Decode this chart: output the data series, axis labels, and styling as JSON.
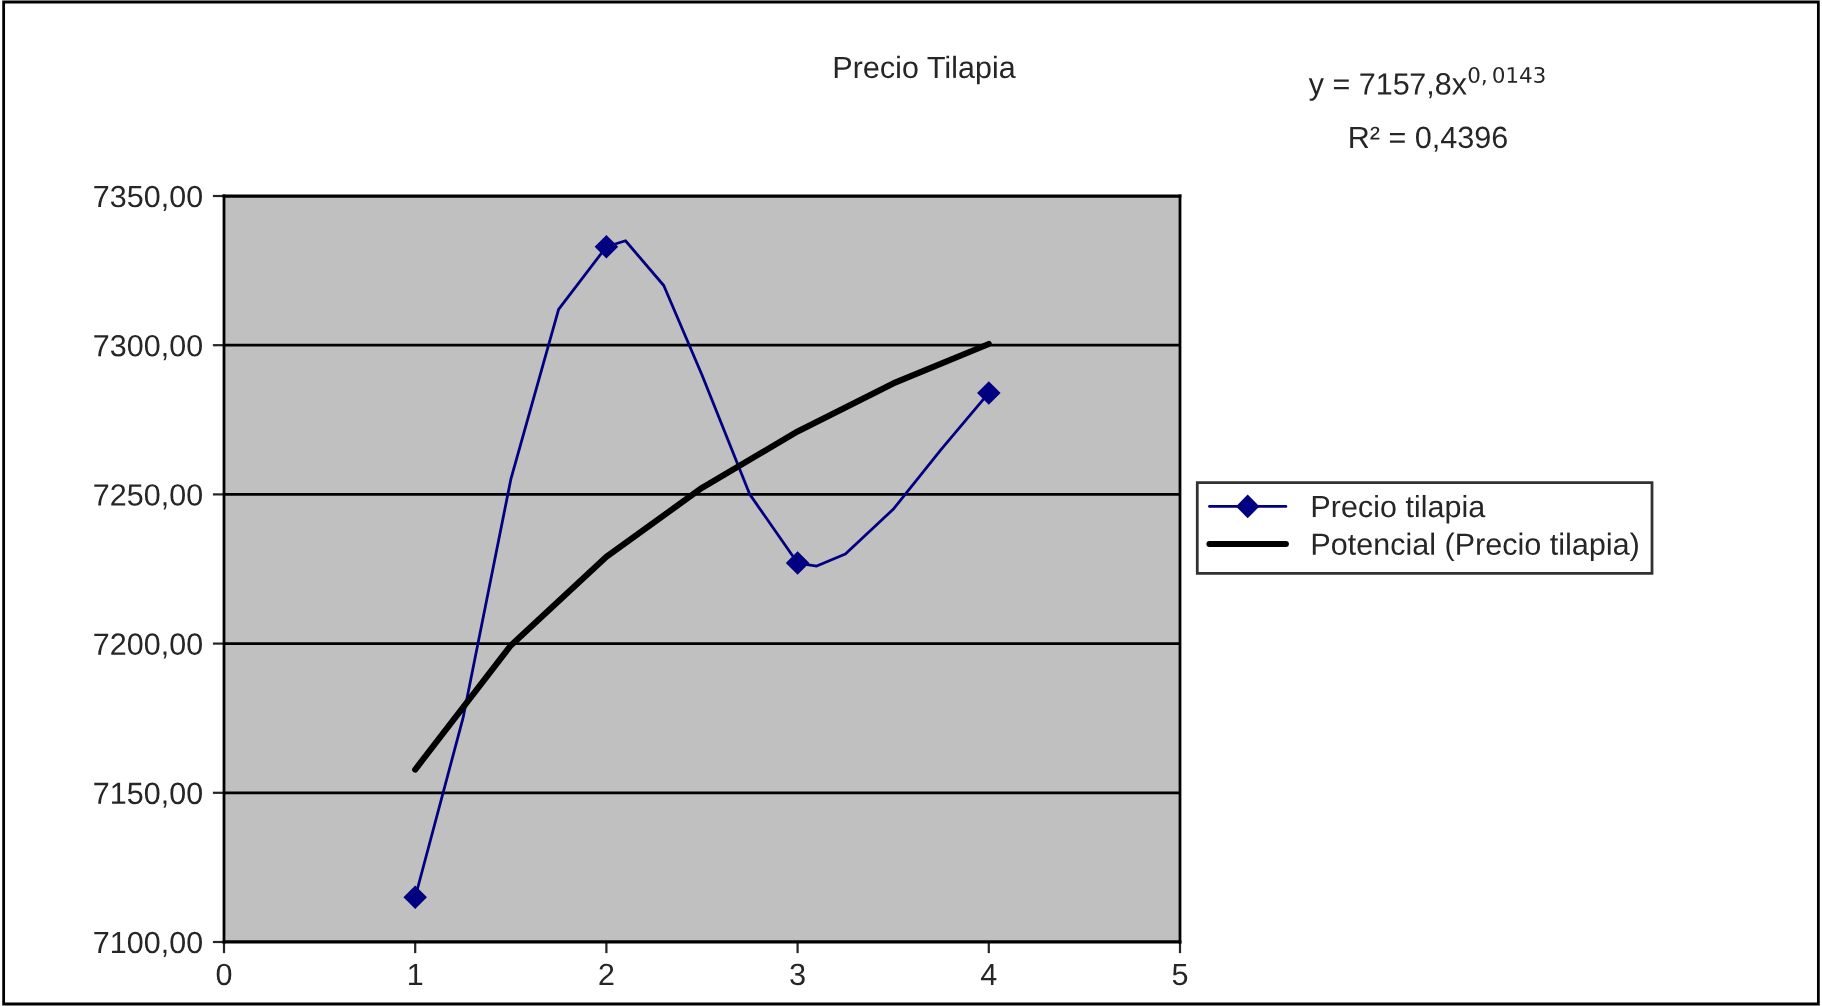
{
  "chart_data": {
    "type": "line",
    "title": "Precio Tilapia",
    "annotations": [
      "y = 7157,8x$^{0,0143}$",
      "R² = 0,4396"
    ],
    "series": [
      {
        "color": "#000080",
        "x": [
          1,
          1.25,
          1.5,
          1.75,
          2,
          2.1,
          2.3,
          2.5,
          2.75,
          3,
          3.1,
          3.25,
          3.5,
          3.75,
          4
        ],
        "values": [
          7115,
          7175,
          7255,
          7312,
          7333,
          7335,
          7320,
          7290,
          7250,
          7227,
          7226,
          7230,
          7245,
          7265,
          7284
        ],
        "marker": "none"
      },
      {
        "type": "scatter",
        "name": "Precio tilapia",
        "color": "#000080",
        "x": [
          1,
          2,
          3,
          4
        ],
        "values": [
          7115,
          7333,
          7227,
          7284
        ],
        "marker": "diamond"
      },
      {
        "name": "Potencial (Precio tilapia)",
        "color": "#000000",
        "x": [
          1,
          1.5,
          2,
          2.5,
          3,
          3.5,
          4
        ],
        "values": [
          7157.8,
          7199.4,
          7229.1,
          7252.2,
          7271.1,
          7287.2,
          7300.4
        ],
        "marker": "none"
      }
    ],
    "xlim": [
      0,
      5
    ],
    "xticks": [
      0,
      1,
      2,
      3,
      4,
      5
    ],
    "ylim": [
      7100,
      7350
    ],
    "yticks": [
      {
        "value": 7100,
        "label": "7100,00"
      },
      {
        "value": 7150,
        "label": "7150,00"
      },
      {
        "value": 7200,
        "label": "7200,00"
      },
      {
        "value": 7250,
        "label": "7250,00"
      },
      {
        "value": 7300,
        "label": "7300,00"
      },
      {
        "value": 7350,
        "label": "7350,00"
      }
    ],
    "grid": "y",
    "legend": "right"
  }
}
